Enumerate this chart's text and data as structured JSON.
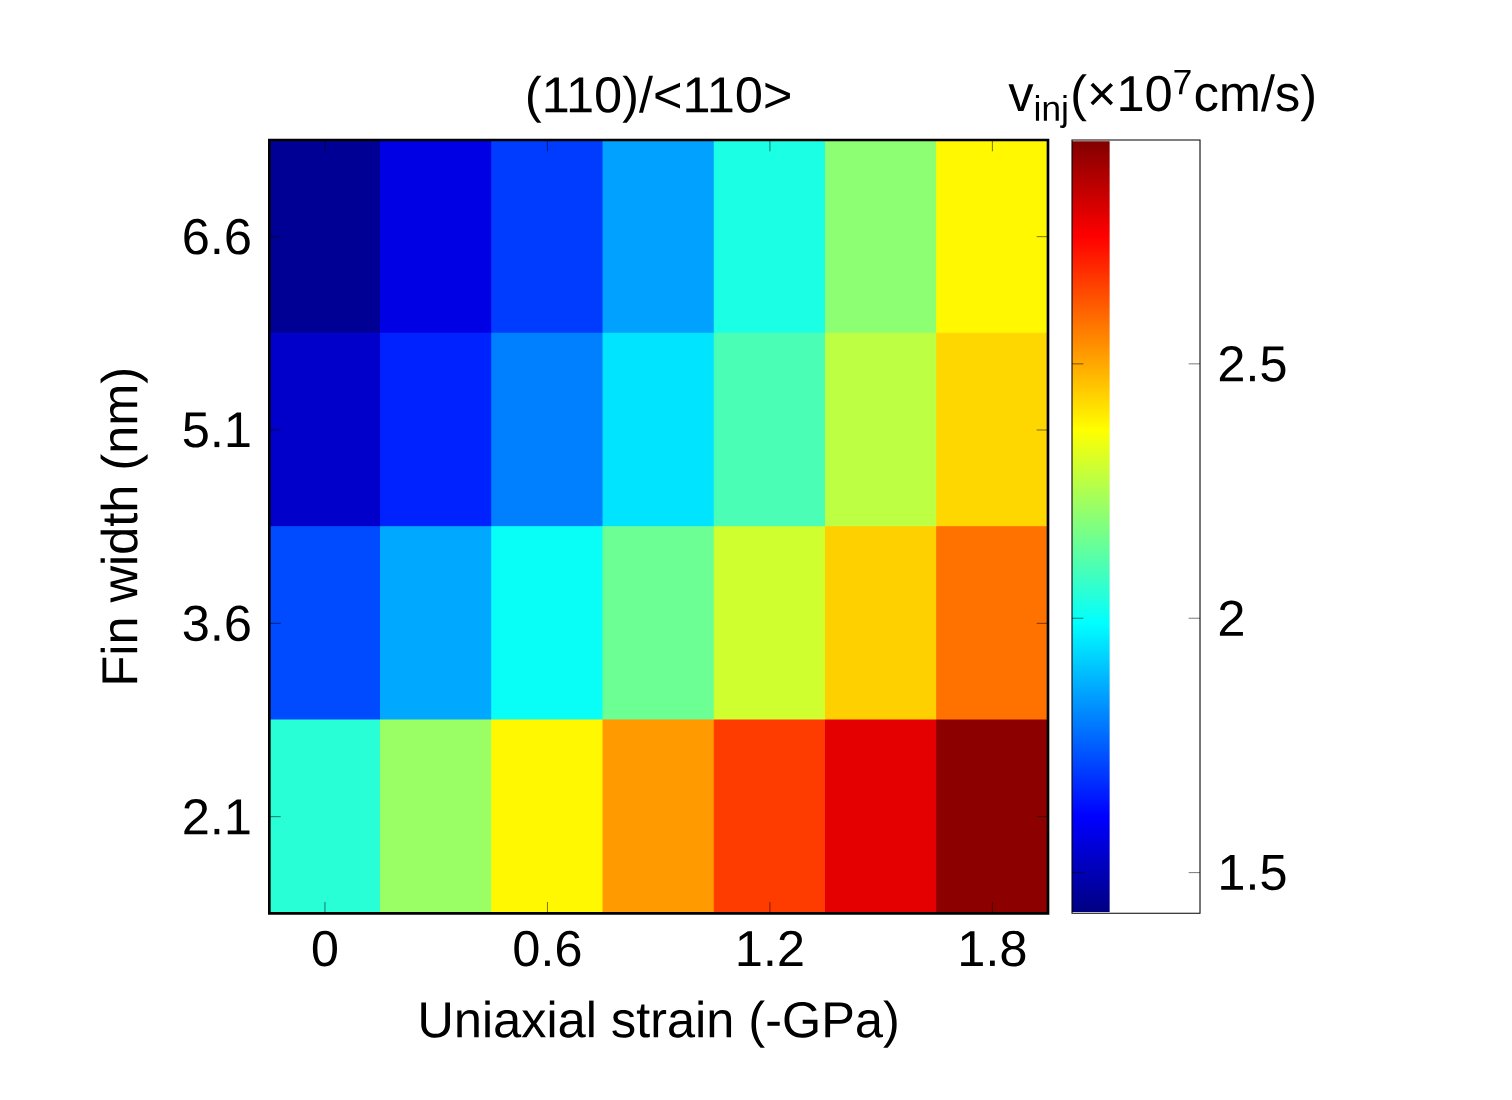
{
  "chart_data": {
    "type": "heatmap",
    "title": "(110)/<110>",
    "xlabel": "Uniaxial strain (-GPa)",
    "ylabel": "Fin width (nm)",
    "clabel": "v$_{inj}$(×10$^{7}$cm/s)",
    "categories": [
      "0",
      null,
      "0.6",
      null,
      "1.2",
      null,
      "1.8"
    ],
    "y_categories": [
      "6.6",
      "5.1",
      "3.6",
      "2.1"
    ],
    "cells": [
      [
        1.45,
        1.57,
        1.7,
        1.85,
        2.03,
        2.2,
        2.38
      ],
      [
        1.53,
        1.66,
        1.8,
        1.95,
        2.1,
        2.27,
        2.43
      ],
      [
        1.72,
        1.86,
        2.0,
        2.15,
        2.3,
        2.44,
        2.58
      ],
      [
        2.05,
        2.22,
        2.38,
        2.52,
        2.66,
        2.79,
        2.92
      ]
    ],
    "clim": [
      1.42,
      2.94
    ],
    "cticks": [
      1.5,
      2,
      2.5
    ]
  }
}
